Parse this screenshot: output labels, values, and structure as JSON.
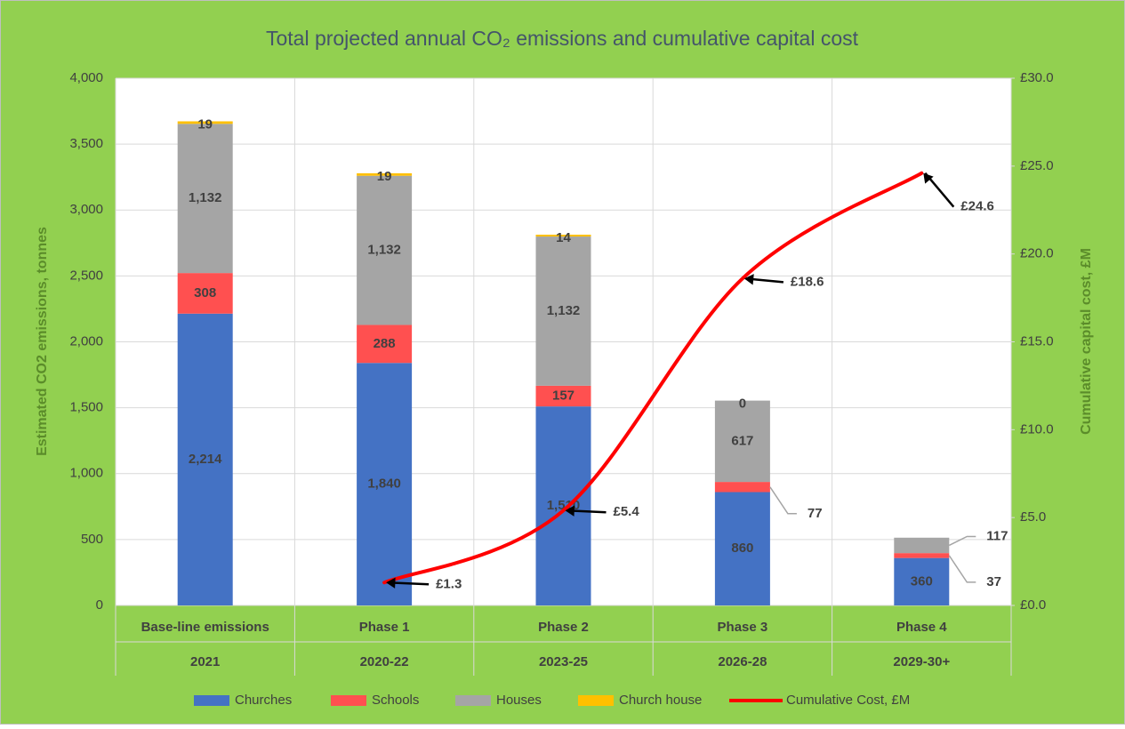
{
  "chart_data": {
    "type": "bar",
    "stacked": true,
    "title": "Total projected annual CO₂ emissions and cumulative capital cost",
    "ylabel": "Estimated CO2 emissions, tonnes",
    "y2label": "Cumulative capital cost, £M",
    "categories": [
      "Base-line emissions",
      "Phase 1",
      "Phase 2",
      "Phase 3",
      "Phase 4"
    ],
    "periods": [
      "2021",
      "2020-22",
      "2023-25",
      "2026-28",
      "2029-30+"
    ],
    "ylim": [
      0,
      4000
    ],
    "yticks": [
      0,
      500,
      {
        "value": 1000,
        "label": "1,000"
      },
      {
        "value": 1500,
        "label": "1,500"
      },
      {
        "value": 2000,
        "label": "2,000"
      },
      {
        "value": 2500,
        "label": "2,500"
      },
      {
        "value": 3000,
        "label": "3,000"
      },
      {
        "value": 3500,
        "label": "3,500"
      },
      {
        "value": 4000,
        "label": "4,000"
      }
    ],
    "y2lim": [
      0,
      30
    ],
    "y2ticks": [
      {
        "value": 0,
        "label": "£0.0"
      },
      {
        "value": 5,
        "label": "£5.0"
      },
      {
        "value": 10,
        "label": "£10.0"
      },
      {
        "value": 15,
        "label": "£15.0"
      },
      {
        "value": 20,
        "label": "£20.0"
      },
      {
        "value": 25,
        "label": "£25.0"
      },
      {
        "value": 30,
        "label": "£30.0"
      }
    ],
    "grid": true,
    "legend": "bottom",
    "series": [
      {
        "name": "Churches",
        "color": "#4472c4",
        "values": [
          2214,
          1840,
          1510,
          860,
          360
        ],
        "value_labels": [
          "2,214",
          "1,840",
          "1,510",
          "860",
          "360"
        ]
      },
      {
        "name": "Schools",
        "color": "#ff5050",
        "values": [
          308,
          288,
          157,
          77,
          37
        ]
      },
      {
        "name": "Houses",
        "color": "#a5a5a5",
        "values": [
          1132,
          1132,
          1132,
          617,
          117
        ],
        "value_labels": [
          "1,132",
          "1,132",
          "1,132",
          "617",
          "117"
        ]
      },
      {
        "name": "Church house",
        "color": "#ffc000",
        "values": [
          19,
          19,
          14,
          0,
          null
        ]
      },
      {
        "name": "Cumulative Cost, £M",
        "type": "line",
        "axis": "y2",
        "color": "#ff0000",
        "values": [
          null,
          1.3,
          5.4,
          18.6,
          24.6
        ],
        "value_labels": [
          null,
          "£1.3",
          "£5.4",
          "£18.6",
          "£24.6"
        ]
      }
    ]
  }
}
